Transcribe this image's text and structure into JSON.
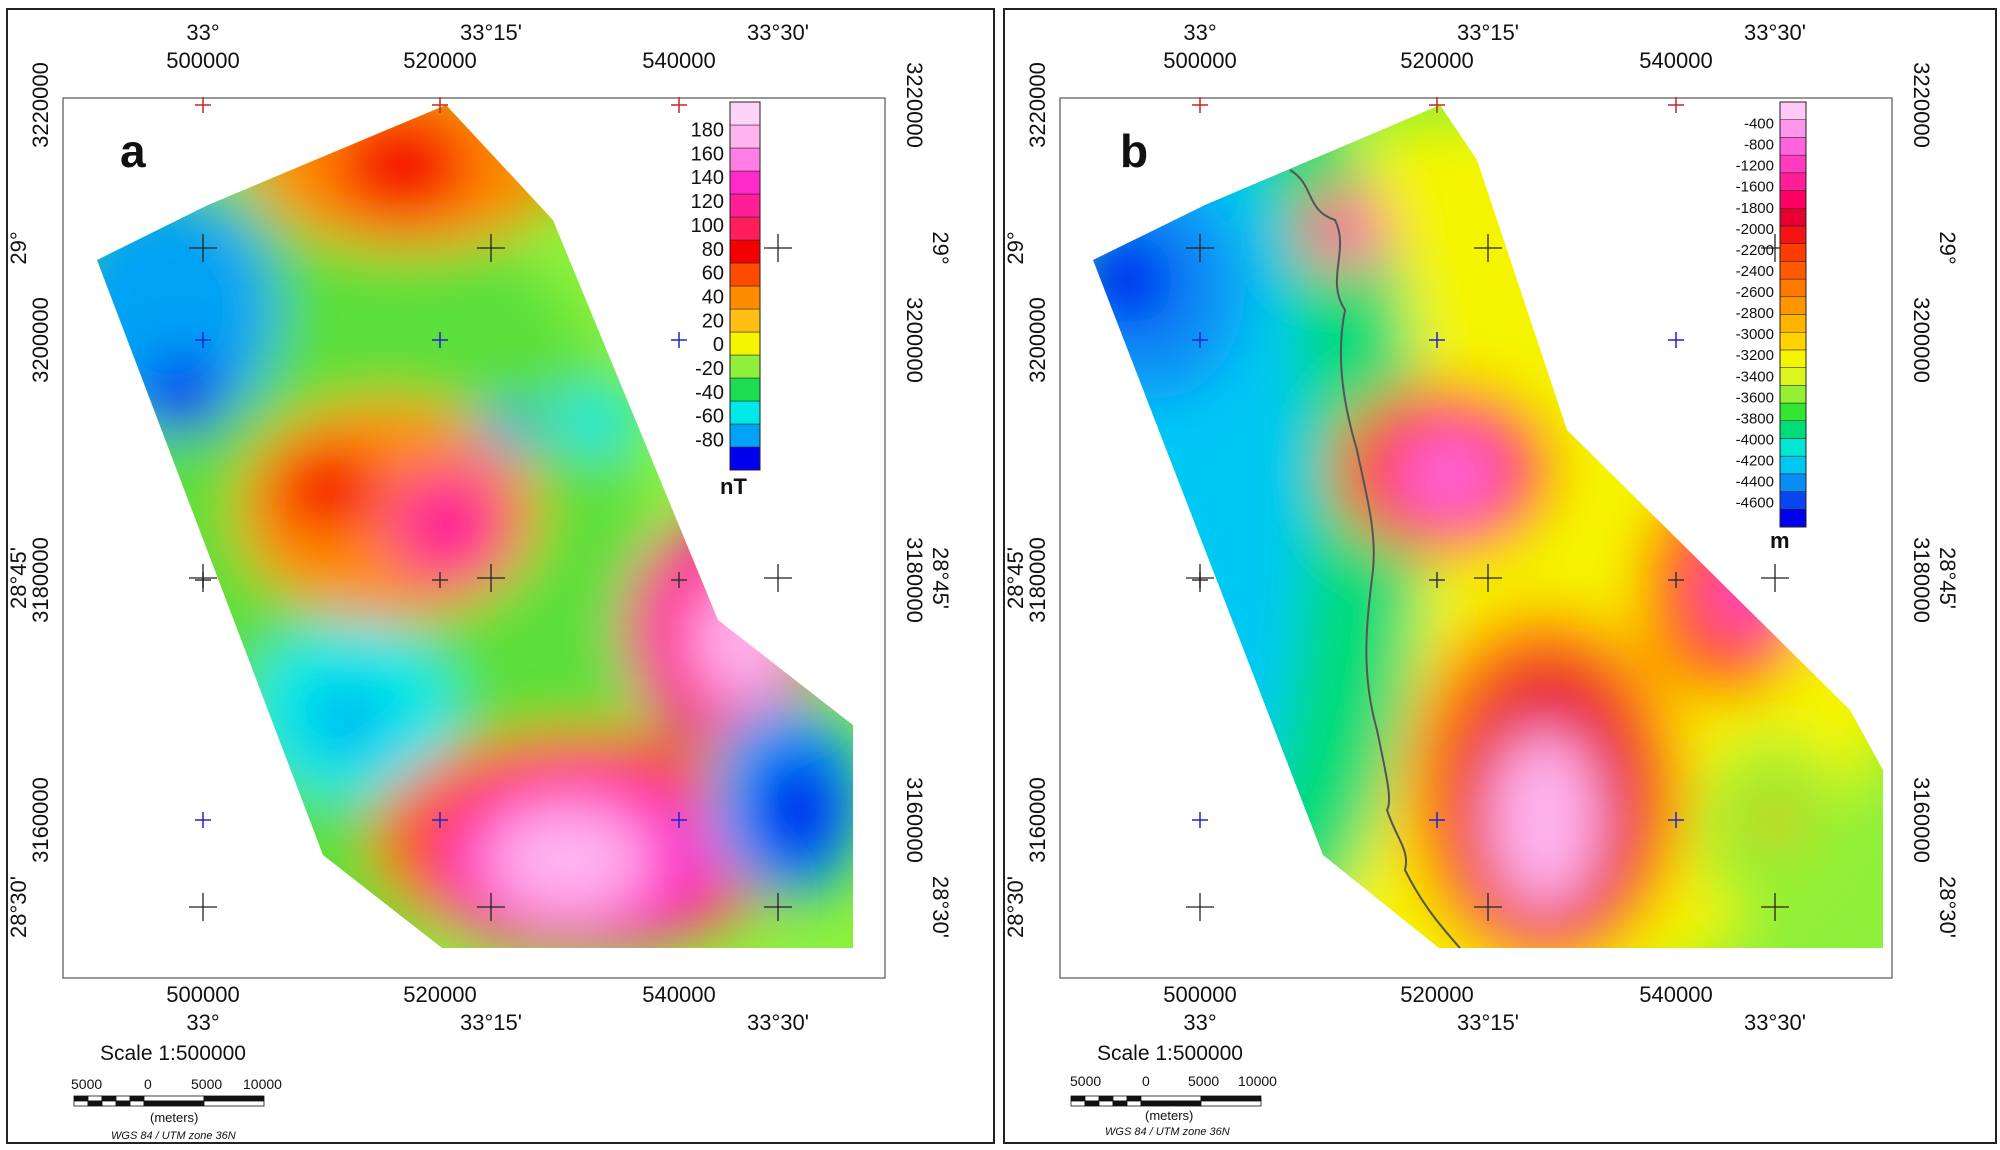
{
  "panels": [
    {
      "letter": "a",
      "legend_unit": "nT",
      "legend_colors": [
        "#0000ee",
        "#00a2f5",
        "#00e8e8",
        "#1edc50",
        "#8ef03c",
        "#f5f500",
        "#ffbe14",
        "#ff8c00",
        "#ff4b00",
        "#f50000",
        "#ff1e5a",
        "#ff1e96",
        "#ff28c8",
        "#ff7ee6",
        "#ffb4f0",
        "#ffd2f8"
      ],
      "legend_labels": [
        "180",
        "160",
        "140",
        "120",
        "100",
        "80",
        "60",
        "40",
        "20",
        "0",
        "-20",
        "-40",
        "-60",
        "-80"
      ],
      "has_river": false
    },
    {
      "letter": "b",
      "legend_unit": "m",
      "legend_colors": [
        "#0000ee",
        "#0a46f0",
        "#0a8cf5",
        "#00c8f5",
        "#00e6d2",
        "#00dc78",
        "#32e632",
        "#96f032",
        "#dcf51e",
        "#f5f500",
        "#ffd200",
        "#ffb400",
        "#ff9600",
        "#ff7800",
        "#ff5a00",
        "#ff3c00",
        "#f51414",
        "#e60032",
        "#ff0064",
        "#ff1e96",
        "#ff3cbe",
        "#ff64dc",
        "#ff96ec",
        "#ffc8f8"
      ],
      "legend_labels": [
        "-400",
        "-800",
        "-1200",
        "-1600",
        "-1800",
        "-2000",
        "-2200",
        "-2400",
        "-2600",
        "-2800",
        "-3000",
        "-3200",
        "-3400",
        "-3600",
        "-3800",
        "-4000",
        "-4200",
        "-4400",
        "-4600"
      ],
      "has_river": true
    }
  ],
  "grid": {
    "easting_labels": [
      "500000",
      "520000",
      "540000"
    ],
    "northing_labels": [
      "3220000",
      "3200000",
      "3180000",
      "3160000"
    ],
    "lon_labels": [
      "33°",
      "33°15'",
      "33°30'"
    ],
    "lat_labels": [
      "29°",
      "28°45'",
      "28°30'"
    ]
  },
  "scale_bar": {
    "title": "Scale 1:500000",
    "ticks": [
      "5000",
      "0",
      "5000",
      "10000"
    ],
    "unit": "(meters)",
    "reference": "WGS 84 / UTM zone 36N"
  },
  "colors": {
    "frame": "#222222",
    "grid_cross_top": "#cc2222",
    "grid_cross_blue": "#2222cc"
  }
}
